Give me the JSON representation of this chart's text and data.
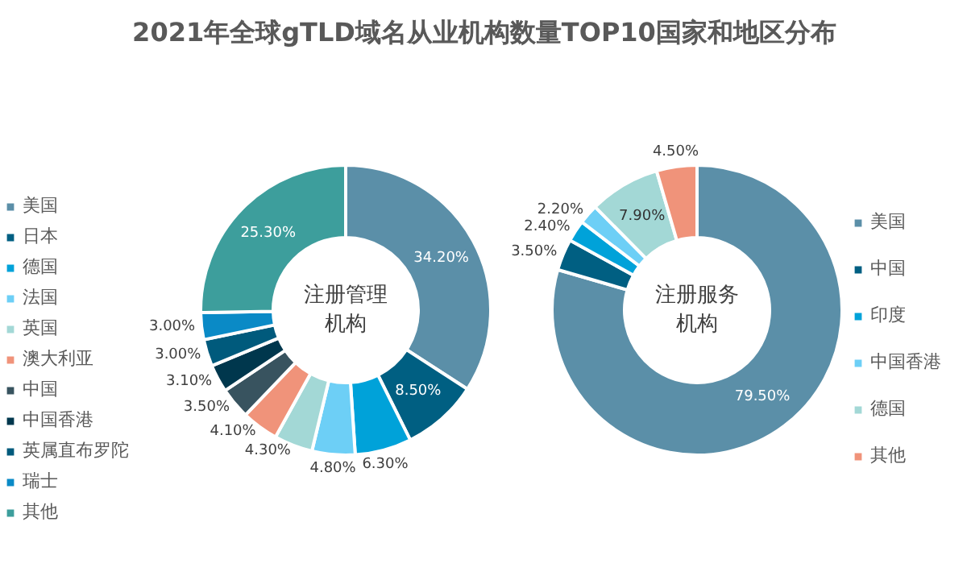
{
  "chart_data": [
    {
      "type": "donut",
      "title": "2021年全球gTLD域名从业机构数量TOP10国家和地区分布",
      "annotations": [
        "注册管理机构"
      ],
      "legend": "left",
      "categories": [
        "美国",
        "日本",
        "德国",
        "法国",
        "英国",
        "澳大利亚",
        "中国",
        "中国香港",
        "英属直布罗陀",
        "瑞士",
        "其他"
      ],
      "values": [
        34.2,
        8.5,
        6.3,
        4.8,
        4.3,
        4.1,
        3.5,
        3.1,
        3.0,
        3.0,
        25.3
      ],
      "value_labels": [
        "34.20%",
        "8.50%",
        "6.30%",
        "4.80%",
        "4.30%",
        "4.10%",
        "3.50%",
        "3.10%",
        "3.00%",
        "3.00%",
        "25.30%"
      ],
      "colors": [
        "#5b8fa8",
        "#005f82",
        "#00a2d9",
        "#6dcff6",
        "#a3d8d6",
        "#f0937a",
        "#38535f",
        "#00374d",
        "#005a7c",
        "#0a8ac6",
        "#3d9e9c"
      ]
    },
    {
      "type": "donut",
      "annotations": [
        "注册服务机构"
      ],
      "legend": "right",
      "categories": [
        "美国",
        "中国",
        "印度",
        "中国香港",
        "德国",
        "其他"
      ],
      "values": [
        79.5,
        3.5,
        2.4,
        2.2,
        7.9,
        4.5
      ],
      "value_labels": [
        "79.50%",
        "3.50%",
        "2.40%",
        "2.20%",
        "7.90%",
        "4.50%"
      ],
      "colors": [
        "#5b8fa8",
        "#005f82",
        "#00a2d9",
        "#6dcff6",
        "#a3d8d6",
        "#f0937a"
      ]
    }
  ]
}
